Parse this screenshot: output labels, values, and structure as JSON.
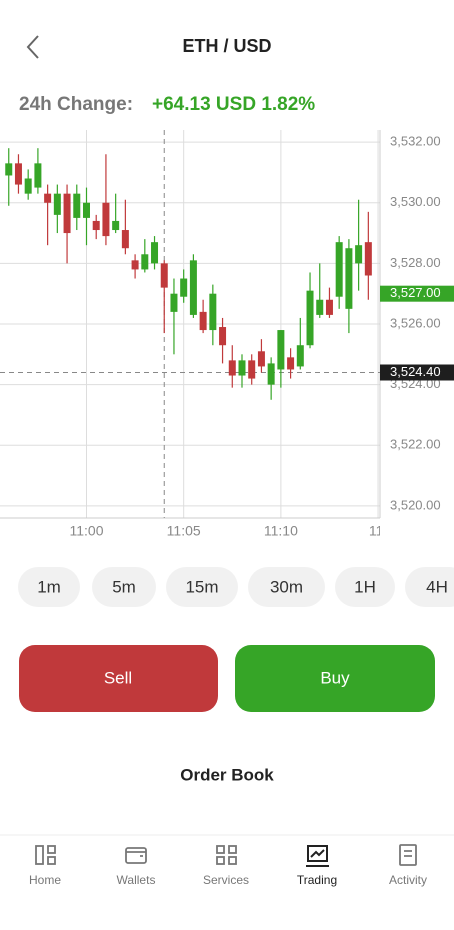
{
  "header": {
    "title": "ETH / USD"
  },
  "change": {
    "label": "24h Change:",
    "value": "+64.13 USD 1.82%"
  },
  "chart_data": {
    "type": "candlestick",
    "up_color": "#36a527",
    "down_color": "#c0393b",
    "open": [
      3530.9,
      3531.3,
      3530.3,
      3530.5,
      3530.3,
      3529.6,
      3530.3,
      3529.5,
      3529.5,
      3529.4,
      3530.0,
      3529.1,
      3529.1,
      3528.1,
      3527.8,
      3528.0,
      3528.0,
      3526.4,
      3526.9,
      3526.3,
      3526.4,
      3525.8,
      3525.9,
      3524.8,
      3524.3,
      3524.8,
      3525.1,
      3524.0,
      3524.5,
      3524.9,
      3524.6,
      3525.3,
      3526.3,
      3526.8,
      3526.9,
      3526.5,
      3528.0,
      3528.7
    ],
    "high": [
      3531.8,
      3531.6,
      3531.1,
      3531.8,
      3530.6,
      3530.6,
      3530.6,
      3530.6,
      3530.5,
      3529.6,
      3531.6,
      3530.3,
      3530.1,
      3528.3,
      3528.8,
      3528.9,
      3528.1,
      3527.5,
      3527.8,
      3528.3,
      3526.8,
      3527.3,
      3526.2,
      3525.3,
      3525.0,
      3525.0,
      3525.5,
      3524.9,
      3525.8,
      3525.2,
      3526.2,
      3527.7,
      3528.0,
      3527.2,
      3528.9,
      3528.8,
      3530.1,
      3529.7
    ],
    "low": [
      3529.9,
      3530.3,
      3530.1,
      3530.3,
      3528.6,
      3529.0,
      3528.0,
      3529.1,
      3528.6,
      3528.8,
      3528.6,
      3529.0,
      3528.3,
      3527.5,
      3527.7,
      3527.8,
      3525.7,
      3525.0,
      3526.7,
      3526.2,
      3525.7,
      3525.3,
      3524.7,
      3523.9,
      3523.9,
      3524.0,
      3524.4,
      3523.5,
      3523.9,
      3524.2,
      3524.5,
      3525.2,
      3526.2,
      3526.2,
      3526.5,
      3525.7,
      3527.1,
      3526.8
    ],
    "close": [
      3531.3,
      3530.6,
      3530.8,
      3531.3,
      3530.0,
      3530.3,
      3529.0,
      3530.3,
      3530.0,
      3529.1,
      3528.9,
      3529.4,
      3528.5,
      3527.8,
      3528.3,
      3528.7,
      3527.2,
      3527.0,
      3527.5,
      3528.1,
      3525.8,
      3527.0,
      3525.3,
      3524.3,
      3524.8,
      3524.2,
      3524.6,
      3524.7,
      3525.8,
      3524.5,
      3525.3,
      3527.1,
      3526.8,
      3526.3,
      3528.7,
      3528.5,
      3528.6,
      3527.6
    ],
    "xlim": [
      -0.9,
      38.2
    ],
    "xticks": [
      {
        "value": 8,
        "label": "11:00"
      },
      {
        "value": 18,
        "label": "11:05"
      },
      {
        "value": 28,
        "label": "11:10"
      },
      {
        "value": 38,
        "label": "11:"
      }
    ],
    "ylim": [
      3519.6,
      3532.4
    ],
    "yticks": [
      {
        "value": 3520,
        "label": "3,520.00"
      },
      {
        "value": 3522,
        "label": "3,522.00"
      },
      {
        "value": 3524,
        "label": "3,524.00"
      },
      {
        "value": 3526,
        "label": "3,526.00"
      },
      {
        "value": 3528,
        "label": "3,528.00"
      },
      {
        "value": 3530,
        "label": "3,530.00"
      },
      {
        "value": 3532,
        "label": "3,532.00"
      }
    ],
    "grid": true,
    "last_price": {
      "value": 3527,
      "label": "3,527.00"
    },
    "crosshair": {
      "x": 16,
      "y": {
        "value": 3524.4,
        "label": "3,524.40"
      }
    }
  },
  "timeframes": [
    "1m",
    "5m",
    "15m",
    "30m",
    "1H",
    "4H"
  ],
  "actions": {
    "sell": "Sell",
    "buy": "Buy"
  },
  "order_book": {
    "title": "Order Book"
  },
  "nav": [
    "Home",
    "Wallets",
    "Services",
    "Trading",
    "Activity"
  ]
}
